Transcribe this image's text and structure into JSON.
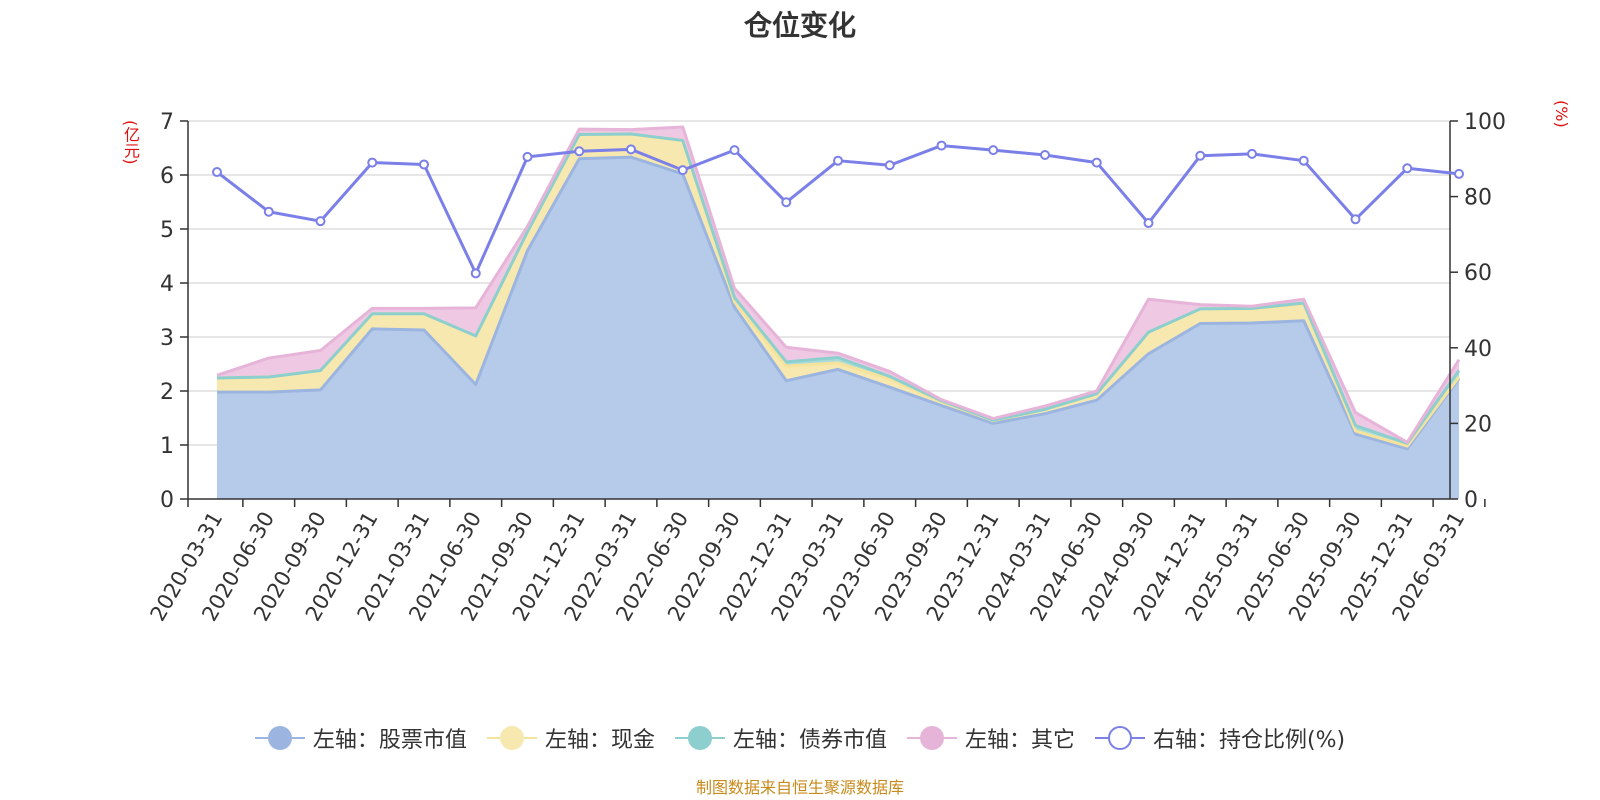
{
  "chart_data": {
    "type": "area",
    "title": "仓位变化",
    "left_unit": "(亿元)",
    "right_unit": "(%)",
    "source": "制图数据来自恒生聚源数据库",
    "left_ylim": [
      0,
      7
    ],
    "left_ticks": [
      "0",
      "1",
      "2",
      "3",
      "4",
      "5",
      "6",
      "7"
    ],
    "right_ylim": [
      0,
      100
    ],
    "right_ticks": [
      "0",
      "20",
      "40",
      "60",
      "80",
      "100"
    ],
    "categories": [
      "2020-03-31",
      "2020-06-30",
      "2020-09-30",
      "2020-12-31",
      "2021-03-31",
      "2021-06-30",
      "2021-09-30",
      "2021-12-31",
      "2022-03-31",
      "2022-06-30",
      "2022-09-30",
      "2022-12-31",
      "2023-03-31",
      "2023-06-30",
      "2023-09-30",
      "2023-12-31",
      "2024-03-31",
      "2024-06-30",
      "2024-09-30",
      "2024-12-31",
      "2025-03-31",
      "2025-06-30",
      "2025-09-30",
      "2025-12-31",
      "2026-03-31"
    ],
    "stacked_series": [
      {
        "name": "左轴：股票市值",
        "line_color": "#9bb5e0",
        "fill_color": "#b6cbe9",
        "values": [
          1.98,
          1.98,
          2.02,
          3.15,
          3.13,
          2.12,
          4.6,
          6.3,
          6.33,
          6.02,
          3.55,
          2.19,
          2.4,
          2.07,
          1.73,
          1.4,
          1.58,
          1.83,
          2.69,
          3.25,
          3.26,
          3.3,
          1.2,
          0.93,
          2.23
        ]
      },
      {
        "name": "左轴：现金",
        "line_color": "#f5e29c",
        "fill_color": "#f7e8b0",
        "values": [
          0.26,
          0.28,
          0.36,
          0.28,
          0.3,
          0.9,
          0.35,
          0.45,
          0.43,
          0.62,
          0.1,
          0.27,
          0.12,
          0.15,
          0.07,
          0.05,
          0.08,
          0.12,
          0.4,
          0.27,
          0.26,
          0.31,
          0.06,
          0.05,
          0.03
        ]
      },
      {
        "name": "左轴：债券市值",
        "line_color": "#8ccfce",
        "fill_color": "#a9dcd9",
        "values": [
          0,
          0,
          0,
          0,
          0,
          0,
          0,
          0,
          0,
          0,
          0.08,
          0.08,
          0.1,
          0.05,
          0.02,
          0.01,
          0,
          0,
          0,
          0,
          0.01,
          0.02,
          0.1,
          0.05,
          0.12
        ]
      },
      {
        "name": "左轴：其它",
        "line_color": "#e7b4d9",
        "fill_color": "#efc9e3",
        "values": [
          0.05,
          0.35,
          0.37,
          0.1,
          0.1,
          0.52,
          0.1,
          0.1,
          0.08,
          0.25,
          0.17,
          0.27,
          0.08,
          0.09,
          0.02,
          0.03,
          0.06,
          0.05,
          0.61,
          0.08,
          0.04,
          0.07,
          0.24,
          0.02,
          0.2
        ]
      }
    ],
    "line_series": {
      "name": "右轴：持仓比例(%)",
      "axis": "right",
      "color": "#7b7fe8",
      "values": [
        86.5,
        76.0,
        73.5,
        89.0,
        88.5,
        59.7,
        90.5,
        92.0,
        92.5,
        87.0,
        92.3,
        78.5,
        89.5,
        88.3,
        93.5,
        92.3,
        91.0,
        89.0,
        73.0,
        90.8,
        91.3,
        89.5,
        74.0,
        87.5,
        86.0
      ]
    }
  }
}
